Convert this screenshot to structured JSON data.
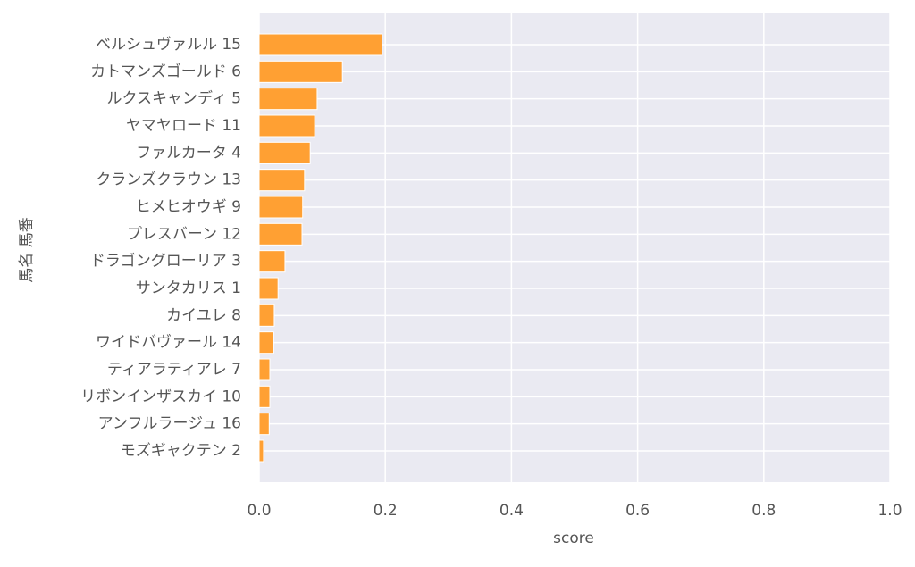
{
  "chart_data": {
    "type": "barh",
    "xlabel": "score",
    "ylabel": "馬名 馬番",
    "categories": [
      "ベルシュヴァルル 15",
      "カトマンズゴールド 6",
      "ルクスキャンディ 5",
      "ヤマヤロード 11",
      "ファルカータ 4",
      "クランズクラウン 13",
      "ヒメヒオウギ 9",
      "プレスバーン 12",
      "ドラゴングローリア 3",
      "サンタカリス 1",
      "カイユレ 8",
      "ワイドバヴァール 14",
      "ティアラティアレ 7",
      "リボンインザスカイ 10",
      "アンフルラージュ 16",
      "モズギャクテン 2"
    ],
    "values": [
      0.195,
      0.132,
      0.092,
      0.088,
      0.081,
      0.072,
      0.069,
      0.068,
      0.041,
      0.03,
      0.024,
      0.023,
      0.017,
      0.017,
      0.016,
      0.007
    ],
    "color": "#ffa033",
    "xlim": [
      0,
      1
    ],
    "xticks": [
      {
        "value": 0,
        "label": "0.0"
      },
      0.2,
      0.4,
      0.6,
      0.8,
      {
        "value": 1,
        "label": "1.0"
      }
    ],
    "grid": true
  }
}
